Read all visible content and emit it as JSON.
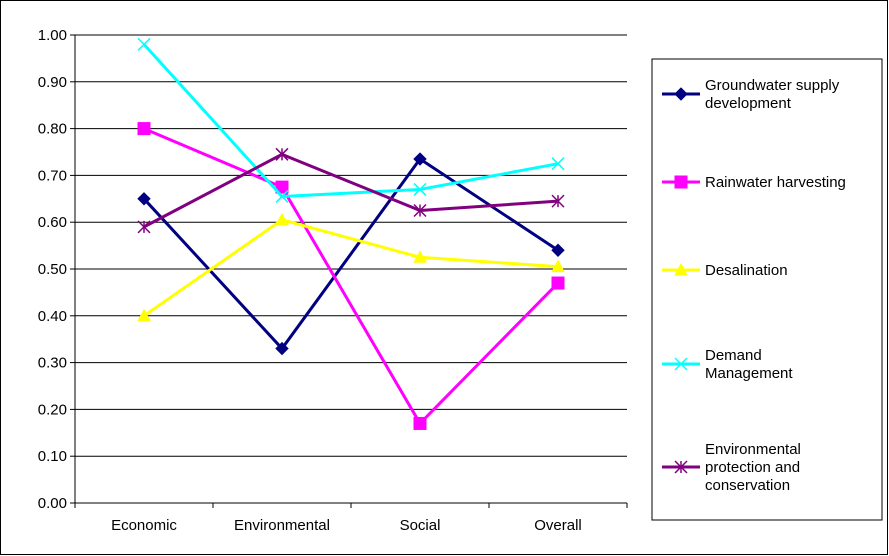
{
  "chart_data": {
    "type": "line",
    "title": "",
    "xlabel": "",
    "ylabel": "",
    "categories": [
      "Economic",
      "Environmental",
      "Social",
      "Overall"
    ],
    "ylim": [
      0,
      1
    ],
    "y_ticks": [
      "0.00",
      "0.10",
      "0.20",
      "0.30",
      "0.40",
      "0.50",
      "0.60",
      "0.70",
      "0.80",
      "0.90",
      "1.00"
    ],
    "grid": true,
    "legend_position": "right",
    "series": [
      {
        "name": "Groundwater supply development",
        "legend_lines": [
          "Groundwater supply",
          "development"
        ],
        "values": [
          0.65,
          0.33,
          0.735,
          0.54
        ],
        "color": "#000080",
        "marker": "diamond"
      },
      {
        "name": "Rainwater harvesting",
        "legend_lines": [
          "Rainwater harvesting"
        ],
        "values": [
          0.8,
          0.675,
          0.17,
          0.47
        ],
        "color": "#ff00ff",
        "marker": "square"
      },
      {
        "name": "Desalination",
        "legend_lines": [
          "Desalination"
        ],
        "values": [
          0.4,
          0.605,
          0.525,
          0.505
        ],
        "color": "#ffff00",
        "marker": "triangle"
      },
      {
        "name": "Demand Management",
        "legend_lines": [
          "Demand",
          "Management"
        ],
        "values": [
          0.98,
          0.655,
          0.67,
          0.725
        ],
        "color": "#00ffff",
        "marker": "x"
      },
      {
        "name": "Environmental protection and conservation",
        "legend_lines": [
          "Environmental",
          "protection and",
          "conservation"
        ],
        "values": [
          0.59,
          0.745,
          0.625,
          0.645
        ],
        "color": "#800080",
        "marker": "asterisk"
      }
    ]
  }
}
